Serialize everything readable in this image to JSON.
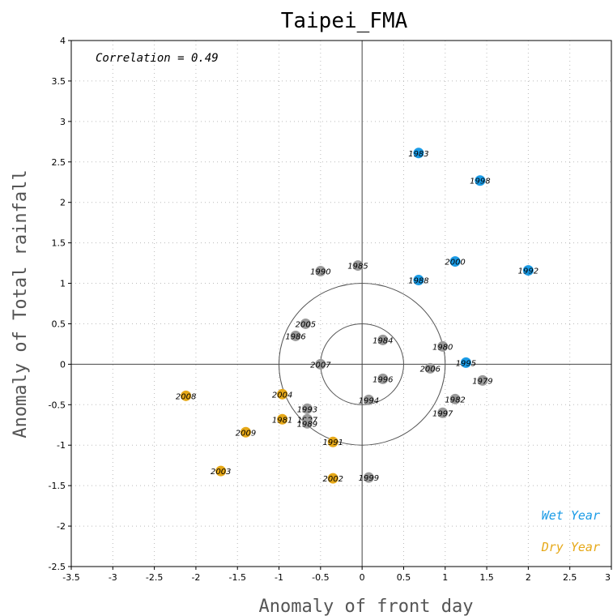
{
  "chart_data": {
    "type": "scatter",
    "title": "Taipei_FMA",
    "xlabel": "Anomaly of front day",
    "ylabel": "Anomaly of Total rainfall",
    "xlim": [
      -3.5,
      3
    ],
    "ylim": [
      -2.5,
      4
    ],
    "x_ticks": [
      -3.5,
      -3,
      -2.5,
      -2,
      -1.5,
      -1,
      -0.5,
      0,
      0.5,
      1,
      1.5,
      2,
      2.5,
      3
    ],
    "y_ticks": [
      -2.5,
      -2,
      -1.5,
      -1,
      -0.5,
      0,
      0.5,
      1,
      1.5,
      2,
      2.5,
      3,
      3.5,
      4
    ],
    "x_tick_labels": [
      "-3.5",
      "-3",
      "-2.5",
      "-2",
      "-1.5",
      "-1",
      "-0.5",
      "0",
      "0.5",
      "1",
      "1.5",
      "2",
      "2.5",
      "3"
    ],
    "y_tick_labels": [
      "-2.5",
      "-2",
      "-1.5",
      "-1",
      "-0.5",
      "0",
      "0.5",
      "1",
      "1.5",
      "2",
      "2.5",
      "3",
      "3.5",
      "4"
    ],
    "grid": true,
    "circles_radius": [
      0.5,
      1.0
    ],
    "annotation": "Correlation = 0.49",
    "legend": [
      {
        "label": "Wet Year",
        "color": "#1a9be6"
      },
      {
        "label": "Dry Year",
        "color": "#e6a817"
      }
    ],
    "legend_position": "bottom-right",
    "colors": {
      "wet": "#1a9be6",
      "dry": "#e6a817",
      "normal": "#9a9a9a"
    },
    "points": [
      {
        "year": "1983",
        "x": 0.68,
        "y": 2.61,
        "group": "wet"
      },
      {
        "year": "1998",
        "x": 1.42,
        "y": 2.27,
        "group": "wet"
      },
      {
        "year": "2000",
        "x": 1.12,
        "y": 1.27,
        "group": "wet"
      },
      {
        "year": "1992",
        "x": 2.0,
        "y": 1.16,
        "group": "wet"
      },
      {
        "year": "1988",
        "x": 0.68,
        "y": 1.04,
        "group": "wet"
      },
      {
        "year": "1995",
        "x": 1.25,
        "y": 0.02,
        "group": "wet"
      },
      {
        "year": "1985",
        "x": -0.05,
        "y": 1.22,
        "group": "normal"
      },
      {
        "year": "1990",
        "x": -0.5,
        "y": 1.15,
        "group": "normal"
      },
      {
        "year": "2005",
        "x": -0.68,
        "y": 0.5,
        "group": "normal"
      },
      {
        "year": "1986",
        "x": -0.8,
        "y": 0.35,
        "group": "normal"
      },
      {
        "year": "1984",
        "x": 0.25,
        "y": 0.3,
        "group": "normal"
      },
      {
        "year": "1980",
        "x": 0.97,
        "y": 0.22,
        "group": "normal"
      },
      {
        "year": "2007",
        "x": -0.5,
        "y": 0.0,
        "group": "normal"
      },
      {
        "year": "2006",
        "x": 0.82,
        "y": -0.05,
        "group": "normal"
      },
      {
        "year": "1996",
        "x": 0.25,
        "y": -0.18,
        "group": "normal"
      },
      {
        "year": "1979",
        "x": 1.45,
        "y": -0.2,
        "group": "normal"
      },
      {
        "year": "1994",
        "x": 0.08,
        "y": -0.44,
        "group": "normal"
      },
      {
        "year": "1982",
        "x": 1.12,
        "y": -0.43,
        "group": "normal"
      },
      {
        "year": "1993",
        "x": -0.66,
        "y": -0.55,
        "group": "normal"
      },
      {
        "year": "1997",
        "x": 0.97,
        "y": -0.6,
        "group": "normal"
      },
      {
        "year": "1987",
        "x": -0.66,
        "y": -0.68,
        "group": "normal"
      },
      {
        "year": "1989",
        "x": -0.66,
        "y": -0.73,
        "group": "normal"
      },
      {
        "year": "1999",
        "x": 0.08,
        "y": -1.4,
        "group": "normal"
      },
      {
        "year": "2008",
        "x": -2.12,
        "y": -0.39,
        "group": "dry"
      },
      {
        "year": "2004",
        "x": -0.96,
        "y": -0.37,
        "group": "dry"
      },
      {
        "year": "1981",
        "x": -0.96,
        "y": -0.68,
        "group": "dry"
      },
      {
        "year": "2009",
        "x": -1.4,
        "y": -0.84,
        "group": "dry"
      },
      {
        "year": "1991",
        "x": -0.35,
        "y": -0.96,
        "group": "dry"
      },
      {
        "year": "2003",
        "x": -1.7,
        "y": -1.32,
        "group": "dry"
      },
      {
        "year": "2002",
        "x": -0.35,
        "y": -1.41,
        "group": "dry"
      }
    ]
  }
}
